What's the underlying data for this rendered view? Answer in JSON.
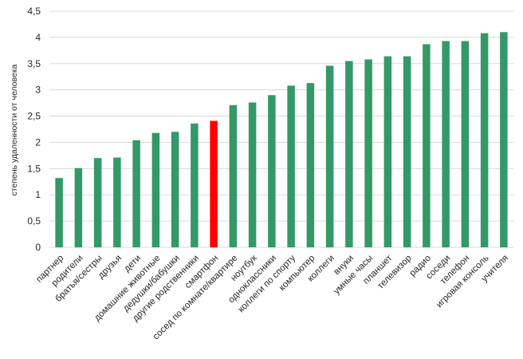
{
  "chart_data": {
    "type": "bar",
    "title": "",
    "xlabel": "",
    "ylabel": "степень удаленности от человека",
    "ylim": [
      0,
      4.5
    ],
    "yticks": [
      "0",
      "0,5",
      "1",
      "1,5",
      "2",
      "2,5",
      "3",
      "3,5",
      "4",
      "4,5"
    ],
    "grid": true,
    "legend": "none",
    "categories": [
      "партнер",
      "родители",
      "братья/сестры",
      "друзья",
      "дети",
      "домашние животные",
      "дедушки/бабушки",
      "другие родственники",
      "смартфон",
      "сосед по комнате/квартире",
      "ноутбук",
      "одноклассники",
      "коллеги по спорту",
      "компьютер",
      "коллеги",
      "внуки",
      "умные часы",
      "планшет",
      "телевизор",
      "радио",
      "соседи",
      "телефон",
      "игровая консоль",
      "учителя"
    ],
    "values": [
      1.32,
      1.51,
      1.7,
      1.71,
      2.04,
      2.18,
      2.2,
      2.36,
      2.41,
      2.71,
      2.76,
      2.9,
      3.08,
      3.13,
      3.46,
      3.55,
      3.58,
      3.64,
      3.64,
      3.87,
      3.93,
      3.93,
      4.08,
      4.1
    ],
    "highlight_index": 8,
    "colors": {
      "bar": "#339966",
      "highlight": "#ff0000",
      "grid": "#d9d9d9"
    }
  }
}
